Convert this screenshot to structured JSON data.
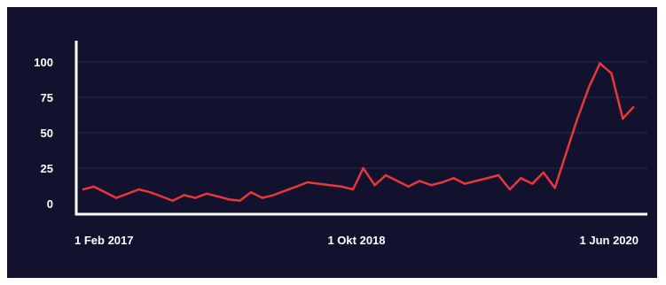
{
  "chart_data": {
    "type": "line",
    "title": "",
    "xlabel": "",
    "ylabel": "",
    "ylim": [
      0,
      100
    ],
    "yticks": [
      0,
      25,
      50,
      75,
      100
    ],
    "xtick_labels": [
      "1 Feb 2017",
      "1 Okt 2018",
      "1 Jun 2020"
    ],
    "grid": true,
    "colors": {
      "background": "#12122e",
      "line": "#e8373a",
      "axis": "#ffffff",
      "grid": "#2b2b4f",
      "text": "#ffffff"
    },
    "series": [
      {
        "color": "#e8373a",
        "points": [
          [
            "2017-02-01",
            10
          ],
          [
            "2017-03-01",
            12
          ],
          [
            "2017-04-01",
            8
          ],
          [
            "2017-05-01",
            4
          ],
          [
            "2017-06-01",
            7
          ],
          [
            "2017-07-01",
            10
          ],
          [
            "2017-08-01",
            8
          ],
          [
            "2017-09-01",
            5
          ],
          [
            "2017-10-01",
            2
          ],
          [
            "2017-11-01",
            6
          ],
          [
            "2017-12-01",
            4
          ],
          [
            "2018-01-01",
            7
          ],
          [
            "2018-02-01",
            5
          ],
          [
            "2018-03-01",
            3
          ],
          [
            "2018-04-01",
            2
          ],
          [
            "2018-05-01",
            8
          ],
          [
            "2018-06-01",
            4
          ],
          [
            "2018-07-01",
            6
          ],
          [
            "2018-08-01",
            9
          ],
          [
            "2018-09-01",
            12
          ],
          [
            "2018-10-01",
            15
          ],
          [
            "2018-11-01",
            14
          ],
          [
            "2018-12-01",
            13
          ],
          [
            "2019-01-01",
            12
          ],
          [
            "2019-02-01",
            10
          ],
          [
            "2019-03-01",
            25
          ],
          [
            "2019-04-01",
            13
          ],
          [
            "2019-05-01",
            20
          ],
          [
            "2019-06-01",
            16
          ],
          [
            "2019-07-01",
            12
          ],
          [
            "2019-08-01",
            16
          ],
          [
            "2019-09-01",
            13
          ],
          [
            "2019-10-01",
            15
          ],
          [
            "2019-11-01",
            18
          ],
          [
            "2019-12-01",
            14
          ],
          [
            "2020-01-01",
            16
          ],
          [
            "2020-02-01",
            18
          ],
          [
            "2020-03-01",
            20
          ],
          [
            "2020-04-01",
            10
          ],
          [
            "2020-05-01",
            18
          ],
          [
            "2020-06-01",
            14
          ],
          [
            "2020-07-01",
            22
          ],
          [
            "2020-08-01",
            11
          ],
          [
            "2020-09-01",
            36
          ],
          [
            "2020-10-01",
            60
          ],
          [
            "2020-11-01",
            82
          ],
          [
            "2020-12-01",
            99
          ],
          [
            "2021-01-01",
            92
          ],
          [
            "2021-02-01",
            60
          ],
          [
            "2021-03-01",
            68
          ]
        ]
      }
    ]
  }
}
